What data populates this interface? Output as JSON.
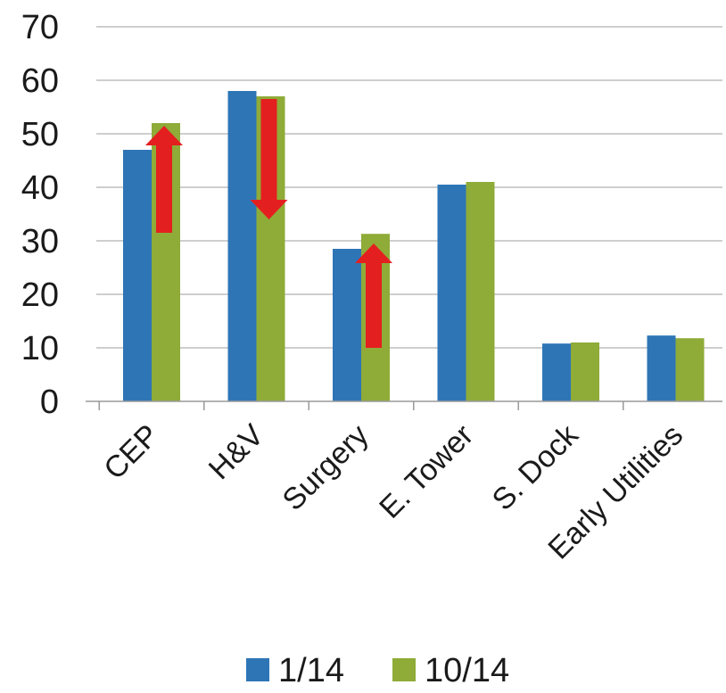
{
  "chart_data": {
    "type": "bar",
    "categories": [
      "CEP",
      "H&V",
      "Surgery",
      "E. Tower",
      "S. Dock",
      "Early Utilities"
    ],
    "series": [
      {
        "name": "1/14",
        "values": [
          47,
          58,
          28.5,
          40.5,
          10.8,
          12.3
        ],
        "color": "#2e75b6"
      },
      {
        "name": "10/14",
        "values": [
          52,
          57,
          31.3,
          41,
          11,
          11.8
        ],
        "color": "#8fab38"
      }
    ],
    "ylim": [
      0,
      70
    ],
    "yticks": [
      "0",
      "10",
      "20",
      "30",
      "40",
      "50",
      "60",
      "70"
    ],
    "grid": true,
    "legend_position": "bottom",
    "annotations": [
      {
        "type": "arrow",
        "direction": "up",
        "category": "CEP",
        "from": 31.5,
        "to": 51.5,
        "color": "#e41f1f"
      },
      {
        "type": "arrow",
        "direction": "down",
        "category": "H&V",
        "from": 56.5,
        "to": 34,
        "color": "#e41f1f"
      },
      {
        "type": "arrow",
        "direction": "up",
        "category": "Surgery",
        "from": 10,
        "to": 29.5,
        "color": "#e41f1f"
      }
    ]
  }
}
